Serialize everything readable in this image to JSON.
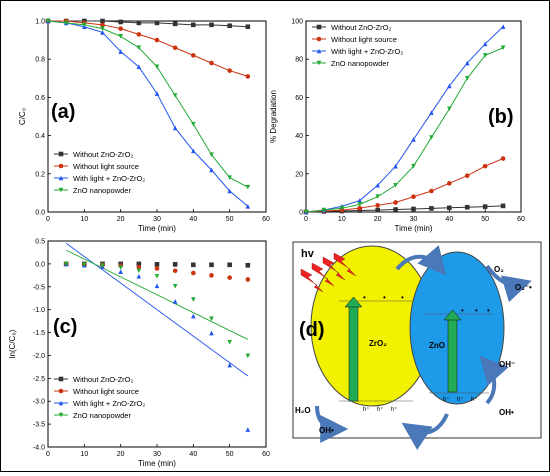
{
  "chart_data": [
    {
      "type": "line",
      "panel_label": "(a)",
      "xlabel": "Time (min)",
      "ylabel": "C/C₀",
      "xlim": [
        0,
        60
      ],
      "ylim": [
        0.0,
        1.0
      ],
      "xticks": [
        "0",
        "10",
        "20",
        "30",
        "40",
        "50",
        "60"
      ],
      "yticks": [
        "0.0",
        "0.2",
        "0.4",
        "0.6",
        "0.8",
        "1.0"
      ],
      "legend_position": "bottom-left",
      "x": [
        0,
        5,
        10,
        15,
        20,
        25,
        30,
        35,
        40,
        45,
        50,
        55
      ],
      "series": [
        {
          "name": "Without ZnO-ZrO₂",
          "color": "#333333",
          "marker": "square",
          "values": [
            1.0,
            1.0,
            1.0,
            1.0,
            0.995,
            0.99,
            0.99,
            0.985,
            0.98,
            0.98,
            0.975,
            0.97
          ]
        },
        {
          "name": "Without light source",
          "color": "#cc3311",
          "marker": "circle",
          "values": [
            1.0,
            1.0,
            0.99,
            0.98,
            0.96,
            0.93,
            0.9,
            0.86,
            0.82,
            0.78,
            0.74,
            0.71
          ]
        },
        {
          "name": "With light + ZnO-ZrO₂",
          "color": "#2255ee",
          "marker": "triangle-up",
          "values": [
            1.0,
            0.99,
            0.97,
            0.94,
            0.84,
            0.76,
            0.62,
            0.44,
            0.32,
            0.22,
            0.11,
            0.03
          ]
        },
        {
          "name": "ZnO nanopowder",
          "color": "#22aa33",
          "marker": "triangle-down",
          "values": [
            1.0,
            0.99,
            0.98,
            0.96,
            0.92,
            0.86,
            0.76,
            0.61,
            0.46,
            0.3,
            0.18,
            0.13
          ]
        }
      ]
    },
    {
      "type": "line",
      "panel_label": "(b)",
      "xlabel": "Time (min)",
      "ylabel": "% Degradation",
      "xlim": [
        0,
        60
      ],
      "ylim": [
        0,
        100
      ],
      "xticks": [
        "0",
        "10",
        "20",
        "30",
        "40",
        "50",
        "60"
      ],
      "yticks": [
        "0",
        "20",
        "40",
        "60",
        "80",
        "100"
      ],
      "legend_position": "top-left",
      "x": [
        0,
        5,
        10,
        15,
        20,
        25,
        30,
        35,
        40,
        45,
        50,
        55
      ],
      "series": [
        {
          "name": "Without ZnO-ZrO₂",
          "color": "#333333",
          "marker": "square",
          "values": [
            0,
            0.3,
            0.5,
            0.8,
            1.0,
            1.3,
            1.6,
            1.9,
            2.2,
            2.5,
            2.8,
            3.2
          ]
        },
        {
          "name": "Without light source",
          "color": "#cc3311",
          "marker": "circle",
          "values": [
            0,
            0.5,
            1.0,
            2.0,
            3.5,
            5.0,
            8.0,
            11.0,
            15.0,
            19.0,
            24.0,
            28.0
          ]
        },
        {
          "name": "With light + ZnO-ZrO₂",
          "color": "#2255ee",
          "marker": "triangle-up",
          "values": [
            0,
            1.0,
            3.0,
            6.0,
            14.0,
            24.0,
            38.0,
            52.0,
            66.0,
            78.0,
            88.0,
            97.0
          ]
        },
        {
          "name": "ZnO nanopowder",
          "color": "#22aa33",
          "marker": "triangle-down",
          "values": [
            0,
            1.0,
            2.0,
            4.0,
            8.0,
            14.0,
            24.0,
            39.0,
            54.0,
            70.0,
            82.0,
            86.0
          ]
        }
      ]
    },
    {
      "type": "scatter",
      "panel_label": "(c)",
      "xlabel": "Time (min)",
      "ylabel": "ln(C/C₀)",
      "xlim": [
        0,
        60
      ],
      "ylim": [
        -4.0,
        0.5
      ],
      "xticks": [
        "0",
        "10",
        "20",
        "30",
        "40",
        "50",
        "60"
      ],
      "yticks": [
        "0.5",
        "0.0",
        "-0.5",
        "-1.0",
        "-1.5",
        "-2.0",
        "-2.5",
        "-3.0",
        "-3.5",
        "-4.0"
      ],
      "legend_position": "bottom-left",
      "x": [
        5,
        10,
        15,
        20,
        25,
        30,
        35,
        40,
        45,
        50,
        55
      ],
      "series": [
        {
          "name": "Without ZnO-ZrO₂",
          "color": "#333333",
          "marker": "square",
          "values": [
            0.0,
            0.0,
            0.0,
            0.0,
            0.0,
            -0.01,
            -0.01,
            -0.02,
            -0.02,
            -0.02,
            -0.03
          ]
        },
        {
          "name": "Without light source",
          "color": "#cc3311",
          "marker": "circle",
          "values": [
            0.0,
            -0.01,
            -0.02,
            -0.04,
            -0.07,
            -0.1,
            -0.15,
            -0.2,
            -0.25,
            -0.3,
            -0.34
          ]
        },
        {
          "name": "With light + ZnO-ZrO₂",
          "color": "#2255ee",
          "marker": "triangle-up",
          "values": [
            0.0,
            -0.03,
            -0.06,
            -0.17,
            -0.27,
            -0.48,
            -0.82,
            -1.14,
            -1.51,
            -2.21,
            -3.62
          ]
        },
        {
          "name": "ZnO nanopowder",
          "color": "#22aa33",
          "marker": "triangle-down",
          "values": [
            0.0,
            -0.02,
            -0.04,
            -0.08,
            -0.15,
            -0.27,
            -0.49,
            -0.78,
            -1.2,
            -1.71,
            -2.01
          ]
        }
      ],
      "fit_lines": [
        {
          "series": "With light + ZnO-ZrO₂",
          "color": "#2255ee",
          "x": [
            5,
            55
          ],
          "y": [
            0.45,
            -2.45
          ]
        },
        {
          "series": "ZnO nanopowder",
          "color": "#22aa33",
          "x": [
            5,
            55
          ],
          "y": [
            0.3,
            -1.65
          ]
        }
      ]
    }
  ],
  "diagram_d": {
    "panel_label": "(d)",
    "hv": "hv",
    "zro2": "ZrO₂",
    "zno": "ZnO",
    "o2": "O₂",
    "o2_radical": "O₂⁻•",
    "oh_minus": "OH⁻",
    "oh_radical_right": "OH•",
    "h2o": "H₂O",
    "oh_radical_left": "OH•",
    "electron": "e⁻",
    "hole": "h⁺",
    "colors": {
      "zro2": "#f2f200",
      "zno": "#1e9be8",
      "arrow": "#4a78b8",
      "lightning": "#ee2222",
      "charge_arrow": "#22aa55"
    }
  }
}
